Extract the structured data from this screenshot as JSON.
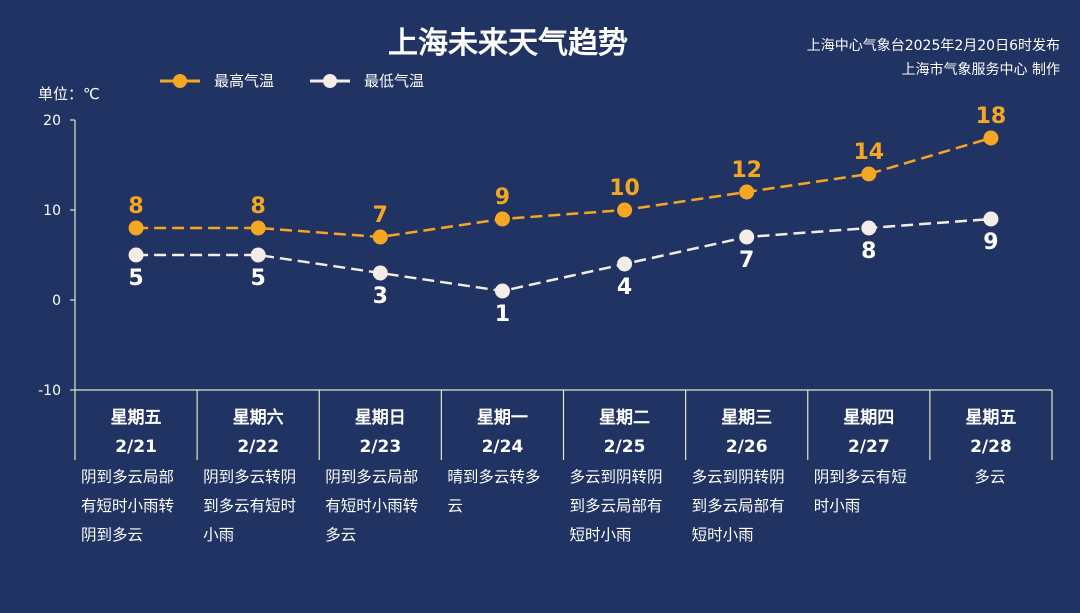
{
  "header": {
    "title": "上海未来天气趋势",
    "source_line1": "上海中心气象台2025年2月20日6时发布",
    "source_line2": "上海市气象服务中心 制作"
  },
  "chart_data": {
    "type": "line",
    "title": "上海未来天气趋势",
    "ylabel": "单位：℃",
    "ylim": [
      -10,
      20
    ],
    "yticks": [
      20,
      10,
      0,
      -10
    ],
    "ytick_labels": [
      "20",
      "10",
      "0",
      "-10"
    ],
    "grid": false,
    "legend_position": "top-left",
    "categories": [
      "2/21",
      "2/22",
      "2/23",
      "2/24",
      "2/25",
      "2/26",
      "2/27",
      "2/28"
    ],
    "weekdays": [
      "星期五",
      "星期六",
      "星期日",
      "星期一",
      "星期二",
      "星期三",
      "星期四",
      "星期五"
    ],
    "weather": [
      "阴到多云局部有短时小雨转阴到多云",
      "阴到多云转阴到多云有短时小雨",
      "阴到多云局部有短时小雨转多云",
      "晴到多云转多云",
      "多云到阴转阴到多云局部有短时小雨",
      "多云到阴转阴到多云局部有短时小雨",
      "阴到多云有短时小雨",
      "多云"
    ],
    "series": [
      {
        "name": "最高气温",
        "color": "#f5a623",
        "values": [
          8,
          8,
          7,
          9,
          10,
          12,
          14,
          18
        ]
      },
      {
        "name": "最低气温",
        "color": "#f4ece6",
        "values": [
          5,
          5,
          3,
          1,
          4,
          7,
          8,
          9
        ]
      }
    ]
  }
}
